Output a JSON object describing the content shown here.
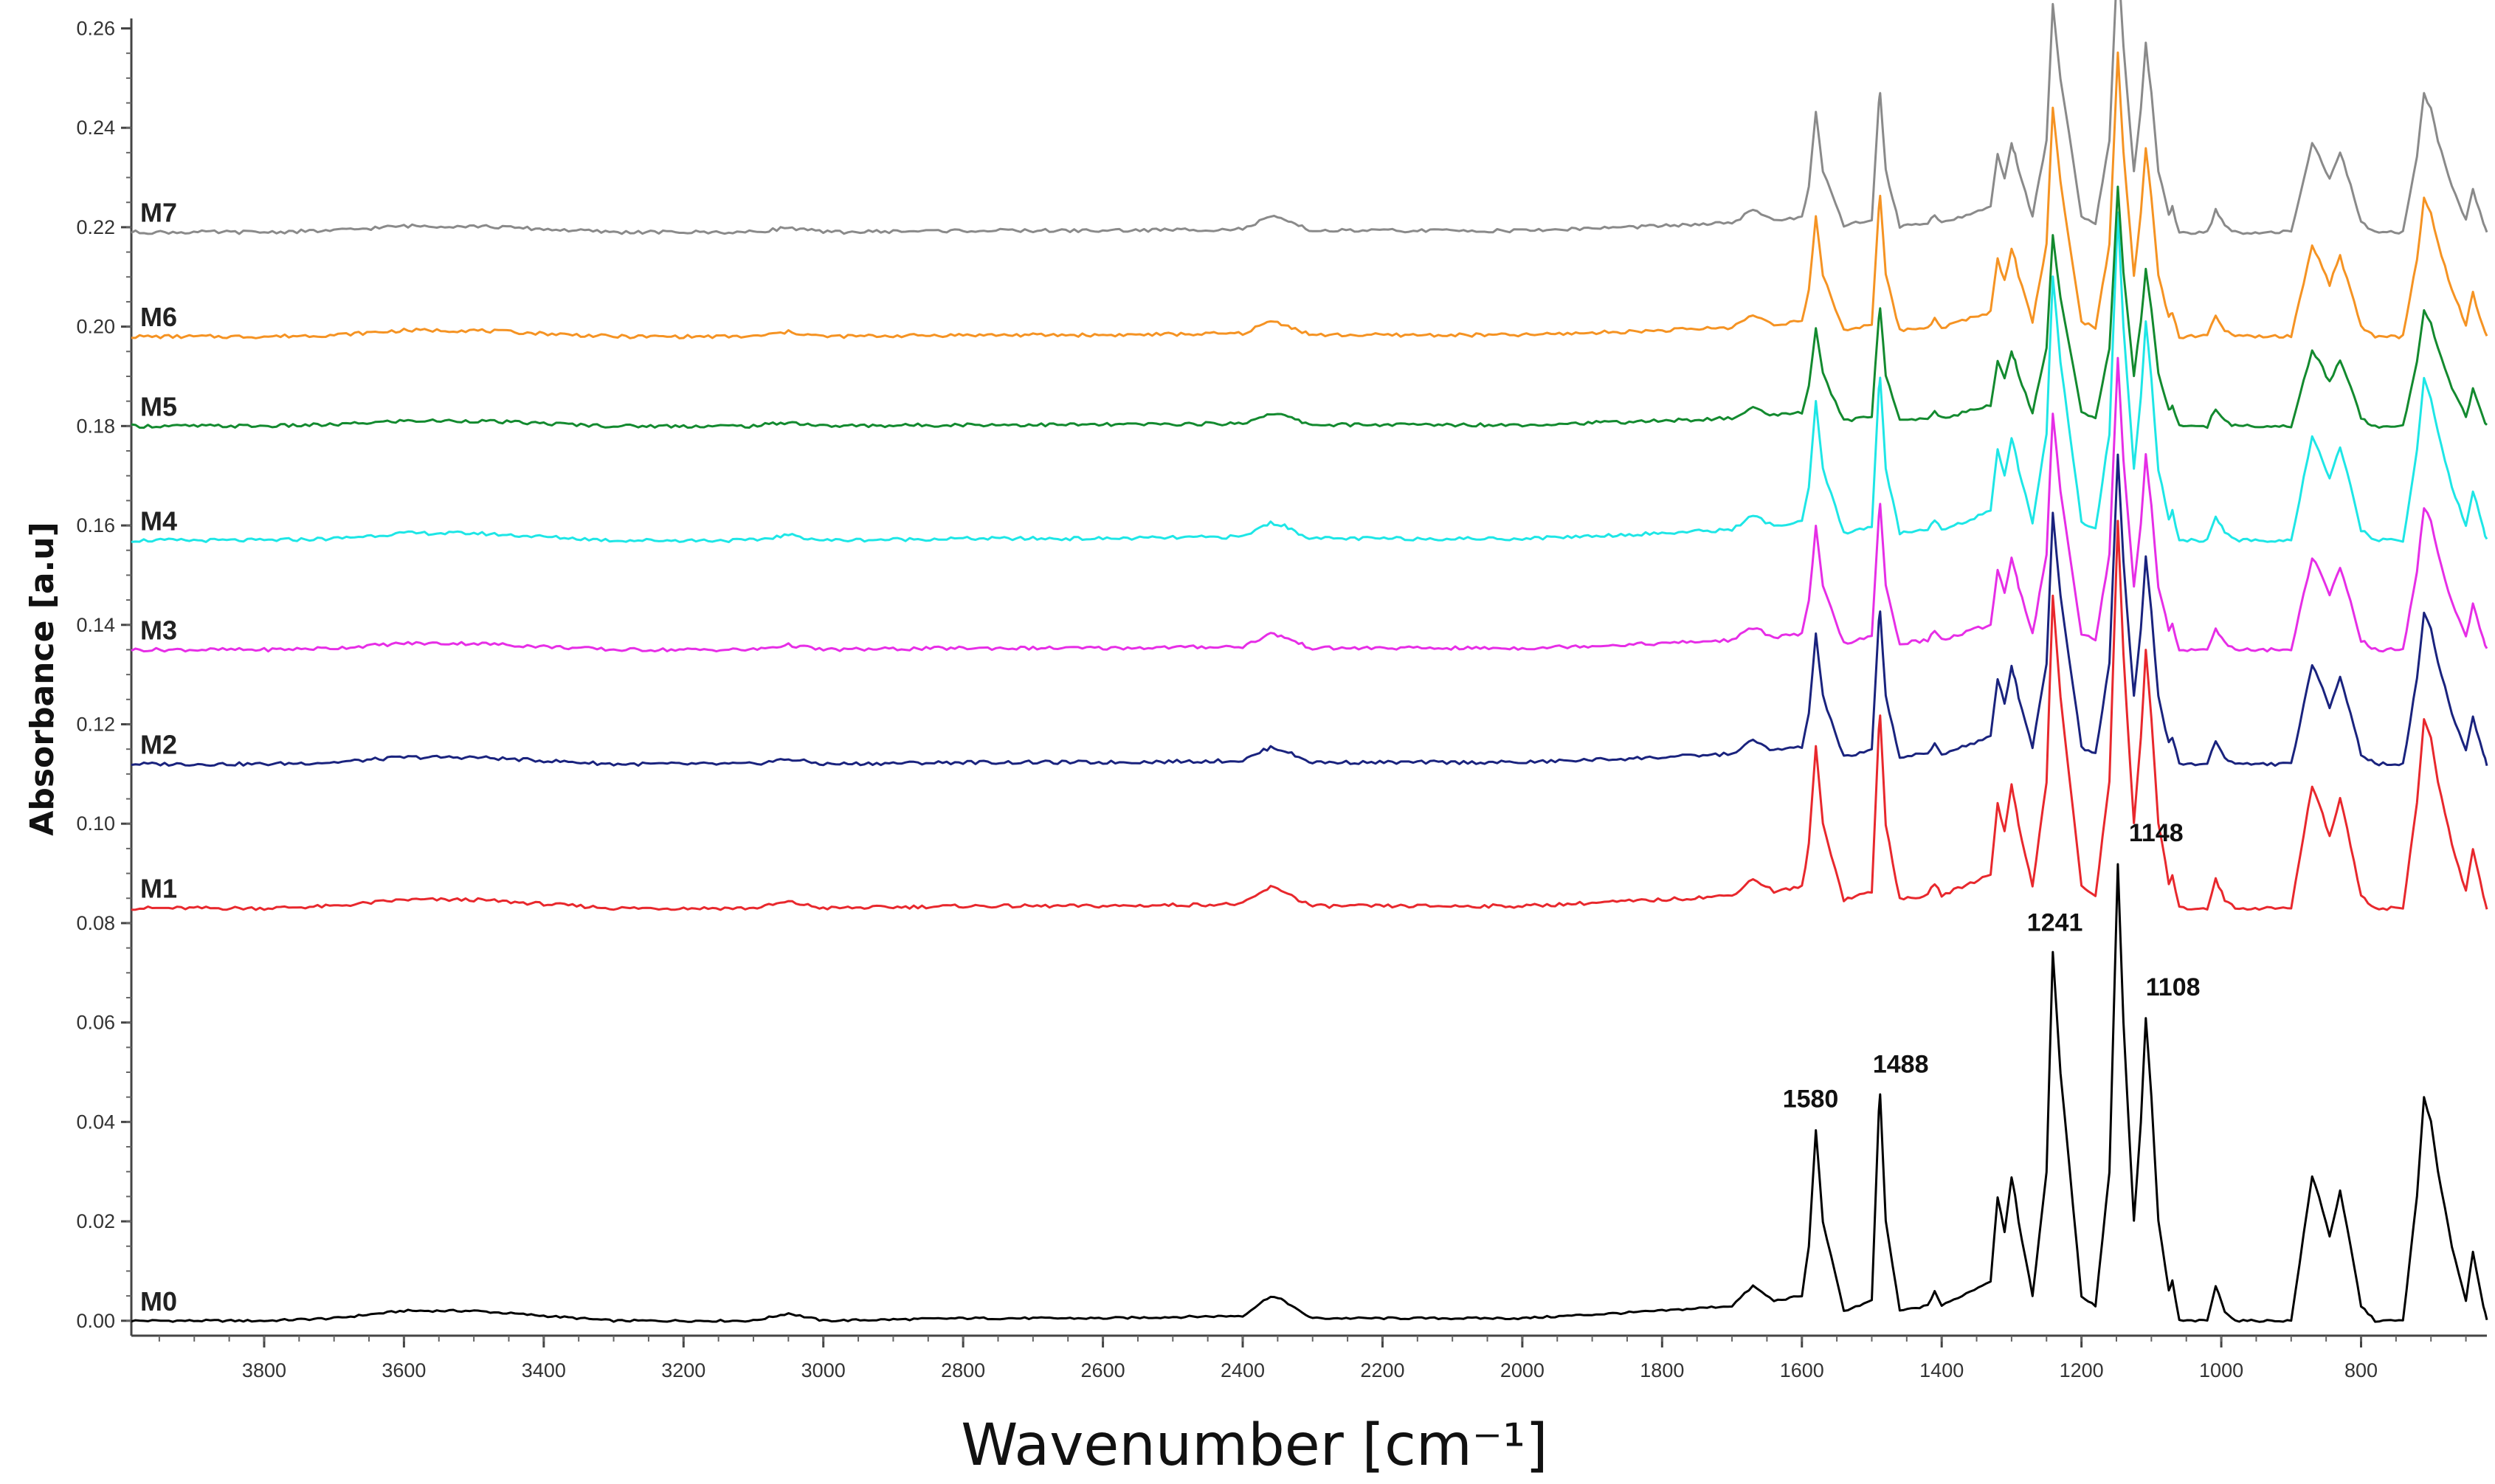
{
  "chart_data": {
    "type": "line",
    "title": "",
    "xlabel": "Wavenumber [cm⁻¹]",
    "ylabel": "Absorbance [a.u]",
    "xlim": [
      3990,
      620
    ],
    "x_reversed": true,
    "ylim": [
      -0.003,
      0.262
    ],
    "x_ticks": [
      3800,
      3600,
      3400,
      3200,
      3000,
      2800,
      2600,
      2400,
      2200,
      2000,
      1800,
      1600,
      1400,
      1200,
      1000,
      800
    ],
    "x_tick_labels": [
      "3800",
      "3600",
      "3400",
      "3200",
      "3000",
      "2800",
      "2600",
      "2400",
      "2200",
      "2000",
      "1800",
      "1600",
      "1400",
      "1200",
      "1000",
      "800"
    ],
    "y_ticks": [
      0.0,
      0.02,
      0.04,
      0.06,
      0.08,
      0.1,
      0.12,
      0.14,
      0.16,
      0.18,
      0.2,
      0.22,
      0.24,
      0.26
    ],
    "y_tick_labels": [
      "0.00",
      "0.02",
      "0.04",
      "0.06",
      "0.08",
      "0.10",
      "0.12",
      "0.14",
      "0.16",
      "0.18",
      "0.20",
      "0.22",
      "0.24",
      "0.26"
    ],
    "grid": false,
    "legend": "none",
    "series": [
      {
        "name": "M0",
        "color": "#000000",
        "offset": 0.0,
        "peak_scale": 1.0,
        "x": [
          3990,
          3800,
          3700,
          3600,
          3500,
          3400,
          3300,
          3100,
          3050,
          3000,
          2800,
          2600,
          2400,
          2370,
          2360,
          2340,
          2320,
          2300,
          2000,
          1800,
          1700,
          1670,
          1640,
          1600,
          1590,
          1580,
          1570,
          1540,
          1500,
          1490,
          1488,
          1480,
          1460,
          1420,
          1410,
          1400,
          1330,
          1320,
          1310,
          1300,
          1295,
          1290,
          1270,
          1250,
          1241,
          1230,
          1200,
          1180,
          1160,
          1148,
          1140,
          1125,
          1115,
          1108,
          1100,
          1090,
          1075,
          1070,
          1060,
          1020,
          1008,
          995,
          980,
          900,
          870,
          860,
          845,
          830,
          815,
          800,
          780,
          740,
          720,
          710,
          700,
          690,
          670,
          650,
          640,
          625,
          620
        ],
        "y": [
          0.0,
          0.0,
          0.0005,
          0.002,
          0.002,
          0.001,
          0.0,
          0.0,
          0.0015,
          0.0,
          0.0005,
          0.0005,
          0.001,
          0.004,
          0.005,
          0.004,
          0.002,
          0.0005,
          0.0005,
          0.002,
          0.003,
          0.007,
          0.004,
          0.005,
          0.015,
          0.0385,
          0.02,
          0.002,
          0.004,
          0.042,
          0.0455,
          0.02,
          0.002,
          0.003,
          0.006,
          0.003,
          0.008,
          0.025,
          0.018,
          0.029,
          0.025,
          0.02,
          0.005,
          0.03,
          0.074,
          0.05,
          0.005,
          0.003,
          0.03,
          0.092,
          0.06,
          0.02,
          0.04,
          0.061,
          0.045,
          0.02,
          0.006,
          0.008,
          0.0,
          0.0,
          0.007,
          0.002,
          0.0,
          0.0,
          0.029,
          0.025,
          0.017,
          0.026,
          0.015,
          0.003,
          0.0,
          0.0,
          0.025,
          0.045,
          0.04,
          0.03,
          0.015,
          0.004,
          0.014,
          0.003,
          0.0
        ]
      },
      {
        "name": "M1",
        "color": "#e8282d",
        "offset": 0.083,
        "peak_scale": 0.85
      },
      {
        "name": "M2",
        "color": "#1a237e",
        "offset": 0.112,
        "peak_scale": 0.68
      },
      {
        "name": "M3",
        "color": "#e62ee6",
        "offset": 0.135,
        "peak_scale": 0.64
      },
      {
        "name": "M4",
        "color": "#1ee6e6",
        "offset": 0.157,
        "peak_scale": 0.72
      },
      {
        "name": "M5",
        "color": "#138a2f",
        "offset": 0.18,
        "peak_scale": 0.52
      },
      {
        "name": "M6",
        "color": "#f59323",
        "offset": 0.198,
        "peak_scale": 0.62
      },
      {
        "name": "M7",
        "color": "#8a8a8a",
        "offset": 0.219,
        "peak_scale": 0.62
      }
    ],
    "peak_annotations": [
      {
        "label": "1580",
        "x": 1580,
        "y": 0.0385
      },
      {
        "label": "1488",
        "x": 1488,
        "y": 0.0455
      },
      {
        "label": "1241",
        "x": 1241,
        "y": 0.074
      },
      {
        "label": "1148",
        "x": 1148,
        "y": 0.092
      },
      {
        "label": "1108",
        "x": 1108,
        "y": 0.061
      }
    ]
  }
}
